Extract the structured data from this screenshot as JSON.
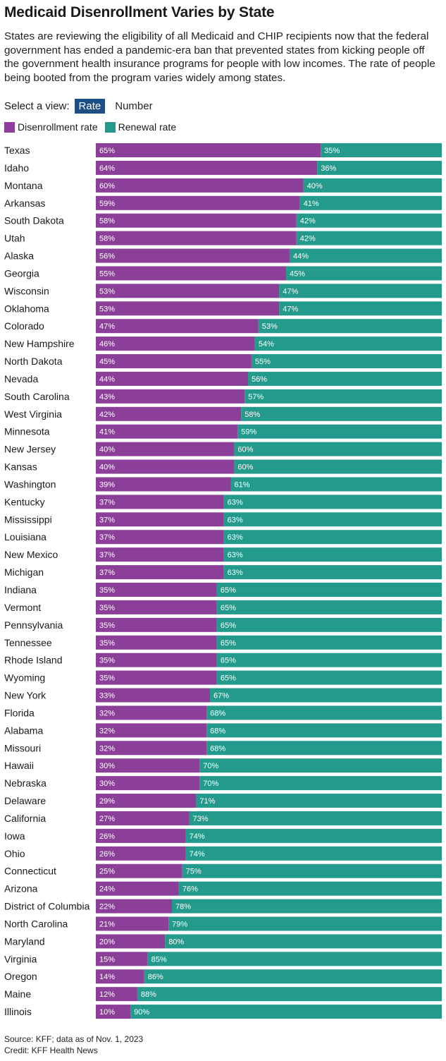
{
  "title": "Medicaid Disenrollment Varies by State",
  "subtitle": "States are reviewing the eligibility of all Medicaid and CHIP recipients now that the federal government has ended a pandemic-era ban that prevented states from kicking people off the government health insurance programs for people with low incomes. The rate of people being booted from the program varies widely among states.",
  "view_selector": {
    "label": "Select a view:",
    "options": [
      "Rate",
      "Number"
    ],
    "selected": "Rate"
  },
  "colors": {
    "disenrollment": "#8b3f98",
    "renewal": "#239a8b",
    "toggle_active": "#1d4f86"
  },
  "footer": {
    "source": "Source: KFF; data as of Nov. 1, 2023",
    "credit": "Credit: KFF Health News"
  },
  "chart_data": {
    "type": "bar",
    "orientation": "horizontal",
    "stacked": true,
    "normalized": true,
    "legend": [
      "Disenrollment rate",
      "Renewal rate"
    ],
    "legend_position": "top-left",
    "categories": [
      "Texas",
      "Idaho",
      "Montana",
      "Arkansas",
      "South Dakota",
      "Utah",
      "Alaska",
      "Georgia",
      "Wisconsin",
      "Oklahoma",
      "Colorado",
      "New Hampshire",
      "North Dakota",
      "Nevada",
      "South Carolina",
      "West Virginia",
      "Minnesota",
      "New Jersey",
      "Kansas",
      "Washington",
      "Kentucky",
      "Mississippi",
      "Louisiana",
      "New Mexico",
      "Michigan",
      "Indiana",
      "Vermont",
      "Pennsylvania",
      "Tennessee",
      "Rhode Island",
      "Wyoming",
      "New York",
      "Florida",
      "Alabama",
      "Missouri",
      "Hawaii",
      "Nebraska",
      "Delaware",
      "California",
      "Iowa",
      "Ohio",
      "Connecticut",
      "Arizona",
      "District of Columbia",
      "North Carolina",
      "Maryland",
      "Virginia",
      "Oregon",
      "Maine",
      "Illinois"
    ],
    "series": [
      {
        "name": "Disenrollment rate",
        "values": [
          65,
          64,
          60,
          59,
          58,
          58,
          56,
          55,
          53,
          53,
          47,
          46,
          45,
          44,
          43,
          42,
          41,
          40,
          40,
          39,
          37,
          37,
          37,
          37,
          37,
          35,
          35,
          35,
          35,
          35,
          35,
          33,
          32,
          32,
          32,
          30,
          30,
          29,
          27,
          26,
          26,
          25,
          24,
          22,
          21,
          20,
          15,
          14,
          12,
          10
        ]
      },
      {
        "name": "Renewal rate",
        "values": [
          35,
          36,
          40,
          41,
          42,
          42,
          44,
          45,
          47,
          47,
          53,
          54,
          55,
          56,
          57,
          58,
          59,
          60,
          60,
          61,
          63,
          63,
          63,
          63,
          63,
          65,
          65,
          65,
          65,
          65,
          65,
          67,
          68,
          68,
          68,
          70,
          70,
          71,
          73,
          74,
          74,
          75,
          76,
          78,
          79,
          80,
          85,
          86,
          88,
          90
        ]
      }
    ],
    "value_suffix": "%",
    "xlim": [
      0,
      100
    ]
  }
}
